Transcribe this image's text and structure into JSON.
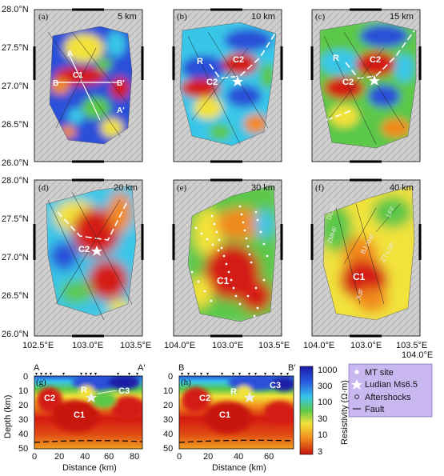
{
  "panels": [
    {
      "letter": "(a)",
      "depth": "5 km",
      "regions": [
        "A",
        "B",
        "C1",
        "B′",
        "A′"
      ]
    },
    {
      "letter": "(b)",
      "depth": "10 km",
      "regions": [
        "R",
        "C2",
        "C2"
      ]
    },
    {
      "letter": "(c)",
      "depth": "15 km",
      "regions": [
        "R",
        "C2",
        "C2"
      ]
    },
    {
      "letter": "(d)",
      "depth": "20 km",
      "regions": [
        "C2"
      ]
    },
    {
      "letter": "(e)",
      "depth": "30 km",
      "regions": [
        "C1"
      ]
    },
    {
      "letter": "(f)",
      "depth": "40 km",
      "regions": [
        "C1"
      ],
      "faults": [
        "DLSF",
        "ZMHF",
        "LFF",
        "BJ-XHF",
        "ZT-LDF",
        "XJF"
      ]
    }
  ],
  "lat_labels": [
    "28.0°N",
    "27.5°N",
    "27.0°N",
    "26.5°N",
    "26.0°N"
  ],
  "lon_labels": [
    "102.5°E",
    "103.0°E",
    "103.5°E",
    "104.0°E"
  ],
  "sections": [
    {
      "letter": "(g)",
      "start": "A",
      "end": "A′",
      "xticks": [
        "0",
        "20",
        "40",
        "60",
        "80"
      ],
      "labels": [
        "C2",
        "C1",
        "R",
        "C3"
      ]
    },
    {
      "letter": "(h)",
      "start": "B",
      "end": "B′",
      "xticks": [
        "0",
        "20",
        "40",
        "60"
      ],
      "labels": [
        "C2",
        "C1",
        "R",
        "C3"
      ]
    }
  ],
  "section_axes": {
    "ylabel": "Depth (km)",
    "yticks": [
      "0",
      "10",
      "20",
      "30",
      "40",
      "50"
    ],
    "xlabel": "Distance (km)"
  },
  "colorbar": {
    "label": "Resistivity (Ω·m)",
    "ticks": [
      "1000",
      "300",
      "100",
      "30",
      "10",
      "3"
    ]
  },
  "legend": {
    "items": [
      "MT site",
      "Ludian Ms6.5",
      "Aftershocks",
      "Fault"
    ],
    "bg": "#c9b8f0"
  },
  "colors": {
    "blue": "#1f3fd0",
    "cyan": "#38c6e8",
    "green": "#5bc84a",
    "yellow": "#f2e23a",
    "orange": "#f08a1c",
    "red": "#d41a12"
  }
}
